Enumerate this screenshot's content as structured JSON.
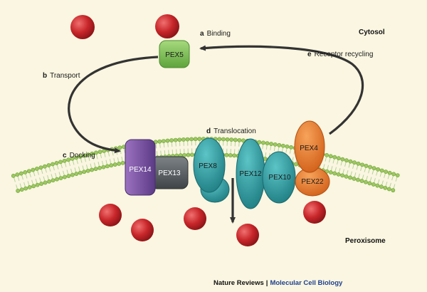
{
  "regions": {
    "cytosol": "Cytosol",
    "peroxisome": "Peroxisome"
  },
  "steps": {
    "a": {
      "letter": "a",
      "text": "Binding"
    },
    "b": {
      "letter": "b",
      "text": "Transport"
    },
    "c": {
      "letter": "c",
      "text": "Docking"
    },
    "d": {
      "letter": "d",
      "text": "Translocation"
    },
    "e": {
      "letter": "e",
      "text": "Receptor recycling"
    }
  },
  "proteins": {
    "pex5": "PEX5",
    "pex14": "PEX14",
    "pex13": "PEX13",
    "pex8": "PEX8",
    "pex12": "PEX12",
    "pex10": "PEX10",
    "pex4": "PEX4",
    "pex22": "PEX22"
  },
  "credit": {
    "journal": "Nature Reviews",
    "separator": "|",
    "series": "Molecular Cell Biology"
  },
  "colors": {
    "background": "#faf6e1",
    "cargo": "#c8262a",
    "pex5": "#7cc15a",
    "pex14": "#7b4fa2",
    "pex13": "#5d6266",
    "teal": "#2f9ea2",
    "orange": "#ee7a22",
    "membrane": "#9cc95e",
    "arrow": "#333333"
  }
}
